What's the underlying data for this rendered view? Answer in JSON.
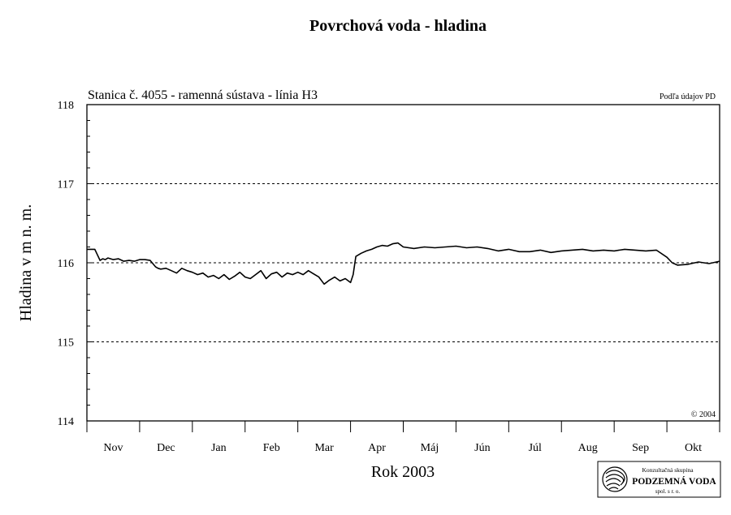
{
  "chart_data": {
    "type": "line",
    "title": "Povrchová voda - hladina",
    "subtitle": "Stanica č. 4055 - ramenná sústava - línia H3",
    "source_note": "Podľa údajov PD",
    "copyright": "© 2004",
    "xlabel": "Rok 2003",
    "ylabel": "Hladina v m n. m.",
    "ylim": [
      114,
      118
    ],
    "yticks": [
      "114",
      "115",
      "116",
      "117",
      "118"
    ],
    "dashed_gridlines": [
      115,
      116,
      117
    ],
    "x_categories": [
      "Nov",
      "Dec",
      "Jan",
      "Feb",
      "Mar",
      "Apr",
      "Máj",
      "Jún",
      "Júl",
      "Aug",
      "Sep",
      "Okt"
    ],
    "x_range_months": [
      0,
      12
    ],
    "series": [
      {
        "x": [
          0.0,
          0.15,
          0.2,
          0.25,
          0.3,
          0.35,
          0.4,
          0.5,
          0.6,
          0.7,
          0.8,
          0.9,
          1.0,
          1.1,
          1.2,
          1.3,
          1.35,
          1.4,
          1.5,
          1.6,
          1.7,
          1.8,
          1.9,
          2.0,
          2.1,
          2.2,
          2.3,
          2.4,
          2.5,
          2.6,
          2.7,
          2.8,
          2.9,
          3.0,
          3.1,
          3.2,
          3.3,
          3.4,
          3.5,
          3.6,
          3.7,
          3.8,
          3.9,
          4.0,
          4.1,
          4.2,
          4.3,
          4.4,
          4.5,
          4.6,
          4.7,
          4.8,
          4.9,
          5.0,
          5.05,
          5.1,
          5.2,
          5.3,
          5.4,
          5.5,
          5.6,
          5.7,
          5.8,
          5.9,
          6.0,
          6.2,
          6.4,
          6.6,
          6.8,
          7.0,
          7.2,
          7.4,
          7.6,
          7.8,
          8.0,
          8.2,
          8.4,
          8.6,
          8.8,
          9.0,
          9.2,
          9.4,
          9.6,
          9.8,
          10.0,
          10.2,
          10.4,
          10.6,
          10.8,
          11.0,
          11.1,
          11.2,
          11.4,
          11.6,
          11.8,
          12.0
        ],
        "y": [
          116.17,
          116.17,
          116.1,
          116.03,
          116.05,
          116.04,
          116.06,
          116.04,
          116.05,
          116.02,
          116.03,
          116.02,
          116.04,
          116.04,
          116.03,
          115.95,
          115.93,
          115.92,
          115.93,
          115.9,
          115.87,
          115.93,
          115.9,
          115.88,
          115.85,
          115.87,
          115.82,
          115.84,
          115.8,
          115.85,
          115.79,
          115.83,
          115.88,
          115.82,
          115.8,
          115.85,
          115.9,
          115.8,
          115.86,
          115.88,
          115.82,
          115.87,
          115.85,
          115.88,
          115.85,
          115.9,
          115.86,
          115.82,
          115.73,
          115.78,
          115.82,
          115.77,
          115.8,
          115.75,
          115.85,
          116.08,
          116.12,
          116.15,
          116.17,
          116.2,
          116.22,
          116.21,
          116.24,
          116.25,
          116.2,
          116.18,
          116.2,
          116.19,
          116.2,
          116.21,
          116.19,
          116.2,
          116.18,
          116.15,
          116.17,
          116.14,
          116.14,
          116.16,
          116.13,
          116.15,
          116.16,
          116.17,
          116.15,
          116.16,
          116.15,
          116.17,
          116.16,
          116.15,
          116.16,
          116.07,
          116.0,
          115.97,
          115.98,
          116.01,
          115.99,
          116.02
        ]
      }
    ]
  },
  "logo": {
    "top": "Konzultačná skupina",
    "main": "PODZEMNÁ VODA",
    "bottom": "spol. s r. o."
  }
}
